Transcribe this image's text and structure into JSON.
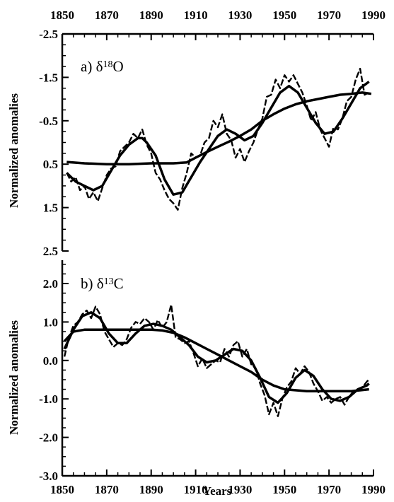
{
  "chart_data": [
    {
      "type": "line",
      "panel_label": "a) δ18O",
      "panel_label_parts": {
        "prefix": "a) δ",
        "sup": "18",
        "suffix": "O"
      },
      "ylabel": "Normalized anomalies",
      "xlim": [
        1850,
        1990
      ],
      "ylim": [
        -2.5,
        2.5
      ],
      "y_inverted": true,
      "x_ticks": [
        1850,
        1870,
        1890,
        1910,
        1930,
        1950,
        1970,
        1990
      ],
      "x_tick_labels": [
        "1850",
        "1870",
        "1890",
        "1910",
        "1930",
        "1950",
        "1970",
        "1990"
      ],
      "x_tick_position": "top",
      "y_ticks": [
        -2.5,
        -1.5,
        -0.5,
        0.5,
        1.5,
        2.5
      ],
      "y_tick_labels": [
        "-2.5",
        "-1.5",
        "-0.5",
        "0.5",
        "1.5",
        "2.5"
      ],
      "series": [
        {
          "style": "dashed-thin",
          "x": [
            1852,
            1854,
            1856,
            1858,
            1860,
            1862,
            1864,
            1866,
            1868,
            1870,
            1872,
            1874,
            1876,
            1878,
            1880,
            1882,
            1884,
            1886,
            1888,
            1890,
            1892,
            1894,
            1896,
            1898,
            1900,
            1902,
            1904,
            1906,
            1908,
            1910,
            1912,
            1914,
            1916,
            1918,
            1920,
            1922,
            1924,
            1926,
            1928,
            1930,
            1932,
            1934,
            1936,
            1938,
            1940,
            1942,
            1944,
            1946,
            1948,
            1950,
            1952,
            1954,
            1956,
            1958,
            1960,
            1962,
            1964,
            1966,
            1968,
            1970,
            1972,
            1974,
            1976,
            1978,
            1980,
            1982,
            1984,
            1986,
            1988
          ],
          "values": [
            0.7,
            0.9,
            0.8,
            1.1,
            1.0,
            1.3,
            1.15,
            1.35,
            1.05,
            0.75,
            0.6,
            0.55,
            0.2,
            0.1,
            0.0,
            -0.2,
            -0.1,
            -0.3,
            0.05,
            0.25,
            0.7,
            0.85,
            1.1,
            1.3,
            1.4,
            1.55,
            1.05,
            0.7,
            0.25,
            0.35,
            0.3,
            0.0,
            -0.1,
            -0.5,
            -0.35,
            -0.65,
            -0.2,
            -0.05,
            0.35,
            0.15,
            0.45,
            0.2,
            0.0,
            -0.3,
            -0.55,
            -1.05,
            -1.1,
            -1.45,
            -1.25,
            -1.55,
            -1.4,
            -1.55,
            -1.35,
            -1.15,
            -0.85,
            -0.5,
            -0.7,
            -0.3,
            -0.1,
            0.1,
            -0.35,
            -0.3,
            -0.55,
            -0.95,
            -1.05,
            -1.45,
            -1.7,
            -1.1,
            -1.15
          ]
        },
        {
          "style": "smooth",
          "x": [
            1852,
            1856,
            1860,
            1864,
            1868,
            1872,
            1876,
            1880,
            1884,
            1886,
            1888,
            1892,
            1896,
            1900,
            1904,
            1908,
            1912,
            1916,
            1920,
            1924,
            1928,
            1932,
            1936,
            1940,
            1944,
            1948,
            1952,
            1956,
            1960,
            1964,
            1968,
            1972,
            1976,
            1980,
            1984,
            1988
          ],
          "values": [
            0.7,
            0.9,
            1.0,
            1.1,
            1.0,
            0.65,
            0.3,
            0.05,
            -0.1,
            -0.1,
            0.0,
            0.3,
            0.85,
            1.2,
            1.15,
            0.8,
            0.45,
            0.15,
            -0.15,
            -0.3,
            -0.2,
            -0.05,
            -0.15,
            -0.45,
            -0.8,
            -1.15,
            -1.3,
            -1.15,
            -0.8,
            -0.45,
            -0.2,
            -0.25,
            -0.55,
            -0.9,
            -1.25,
            -1.4
          ]
        },
        {
          "style": "trend",
          "x": [
            1852,
            1860,
            1870,
            1880,
            1890,
            1900,
            1906,
            1910,
            1915,
            1920,
            1925,
            1930,
            1935,
            1940,
            1945,
            1950,
            1955,
            1960,
            1965,
            1970,
            1975,
            1980,
            1985,
            1989
          ],
          "values": [
            0.45,
            0.48,
            0.5,
            0.5,
            0.48,
            0.48,
            0.46,
            0.35,
            0.22,
            0.1,
            -0.02,
            -0.15,
            -0.3,
            -0.5,
            -0.65,
            -0.78,
            -0.88,
            -0.95,
            -1.0,
            -1.05,
            -1.1,
            -1.12,
            -1.15,
            -1.12
          ]
        }
      ]
    },
    {
      "type": "line",
      "panel_label": "b) δ13C",
      "panel_label_parts": {
        "prefix": "b) δ",
        "sup": "13",
        "suffix": "C"
      },
      "ylabel": "Normalized anomalies",
      "xlabel": "Years",
      "xlim": [
        1850,
        1990
      ],
      "ylim": [
        -3.0,
        2.5
      ],
      "x_ticks": [
        1850,
        1870,
        1890,
        1910,
        1930,
        1950,
        1970,
        1990
      ],
      "x_tick_labels": [
        "1850",
        "1870",
        "1890",
        "1910",
        "1930",
        "1950",
        "1970",
        "1990"
      ],
      "y_ticks": [
        2.0,
        1.0,
        0.0,
        -1.0,
        -2.0,
        -3.0
      ],
      "y_tick_labels": [
        "2.0",
        "1.0",
        "0.0",
        "-1.0",
        "-2.0",
        "-3.0"
      ],
      "series": [
        {
          "style": "dashed-thin",
          "x": [
            1851,
            1853,
            1855,
            1857,
            1859,
            1861,
            1863,
            1865,
            1867,
            1869,
            1871,
            1873,
            1875,
            1877,
            1879,
            1881,
            1883,
            1885,
            1887,
            1889,
            1891,
            1893,
            1895,
            1897,
            1899,
            1901,
            1903,
            1905,
            1907,
            1909,
            1911,
            1913,
            1915,
            1917,
            1919,
            1921,
            1923,
            1925,
            1927,
            1929,
            1931,
            1933,
            1935,
            1937,
            1939,
            1941,
            1943,
            1945,
            1947,
            1949,
            1951,
            1953,
            1955,
            1957,
            1959,
            1961,
            1963,
            1965,
            1967,
            1969,
            1971,
            1973,
            1975,
            1977,
            1979,
            1981,
            1983,
            1985,
            1987,
            1988
          ],
          "values": [
            0.1,
            0.6,
            0.9,
            1.0,
            1.2,
            1.3,
            1.1,
            1.4,
            1.2,
            0.75,
            0.55,
            0.35,
            0.45,
            0.4,
            0.55,
            0.85,
            1.0,
            0.95,
            1.1,
            1.0,
            0.8,
            1.05,
            0.85,
            1.0,
            1.45,
            0.6,
            0.55,
            0.45,
            0.5,
            0.2,
            -0.15,
            0.05,
            -0.2,
            -0.1,
            0.0,
            -0.05,
            0.3,
            0.1,
            0.4,
            0.5,
            0.1,
            0.3,
            -0.1,
            -0.2,
            -0.6,
            -0.9,
            -1.4,
            -1.1,
            -1.45,
            -1.0,
            -0.7,
            -0.55,
            -0.2,
            -0.35,
            -0.15,
            -0.3,
            -0.6,
            -0.8,
            -1.05,
            -0.95,
            -1.1,
            -1.0,
            -0.95,
            -1.15,
            -0.95,
            -0.8,
            -0.75,
            -0.7,
            -0.55,
            -0.5
          ]
        },
        {
          "style": "smooth",
          "x": [
            1851,
            1855,
            1859,
            1863,
            1867,
            1871,
            1875,
            1879,
            1883,
            1887,
            1891,
            1895,
            1899,
            1903,
            1907,
            1911,
            1915,
            1919,
            1923,
            1927,
            1931,
            1935,
            1939,
            1943,
            1947,
            1951,
            1955,
            1959,
            1963,
            1967,
            1971,
            1975,
            1979,
            1983,
            1987,
            1988
          ],
          "values": [
            0.3,
            0.8,
            1.15,
            1.25,
            1.1,
            0.7,
            0.45,
            0.45,
            0.7,
            0.9,
            0.95,
            0.9,
            0.8,
            0.6,
            0.4,
            0.1,
            -0.05,
            0.0,
            0.15,
            0.3,
            0.25,
            0.0,
            -0.45,
            -0.95,
            -1.1,
            -0.85,
            -0.45,
            -0.25,
            -0.4,
            -0.75,
            -1.0,
            -1.05,
            -0.95,
            -0.75,
            -0.65,
            -0.6
          ]
        },
        {
          "style": "trend",
          "x": [
            1851,
            1855,
            1860,
            1870,
            1880,
            1890,
            1895,
            1900,
            1905,
            1910,
            1915,
            1920,
            1925,
            1930,
            1935,
            1940,
            1945,
            1950,
            1960,
            1970,
            1980,
            1988
          ],
          "values": [
            0.5,
            0.75,
            0.8,
            0.8,
            0.8,
            0.8,
            0.78,
            0.72,
            0.6,
            0.45,
            0.3,
            0.15,
            0.0,
            -0.15,
            -0.3,
            -0.5,
            -0.65,
            -0.75,
            -0.8,
            -0.8,
            -0.8,
            -0.75
          ]
        }
      ]
    }
  ]
}
